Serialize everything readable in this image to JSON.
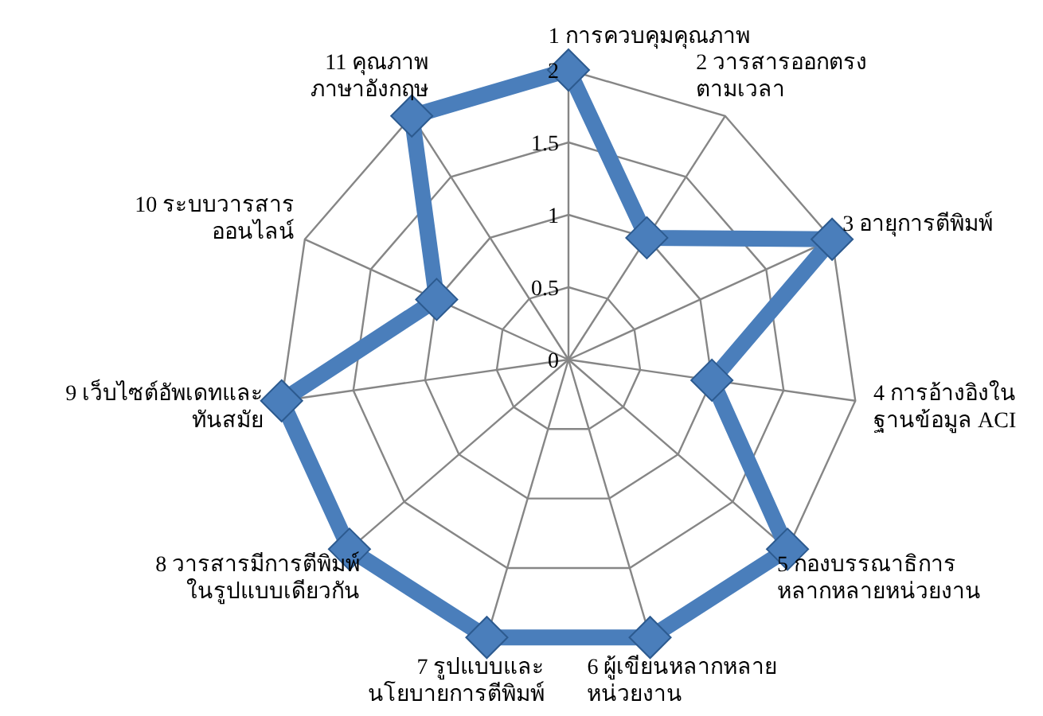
{
  "chart_data": {
    "type": "radar",
    "categories": [
      "1 การควบคุมคุณภาพ",
      "2 วารสารออกตรง ตามเวลา",
      "3 อายุการตีพิมพ์",
      "4 การอ้างอิงใน ฐานข้อมูล ACI",
      "5 กองบรรณาธิการ หลากหลายหน่วยงาน",
      "6 ผู้เขียนหลากหลาย หน่วยงาน",
      "7 รูปแบบและ นโยบายการตีพิมพ์",
      "8 วารสารมีการตีพิมพ์ ในรูปแบบเดียวกัน",
      "9 เว็บไซต์อัพเดทและ ทันสมัย",
      "10 ระบบวารสาร ออนไลน์",
      "11 คุณภาพ ภาษาอังกฤษ"
    ],
    "series": [
      {
        "color": "#4a7ebb",
        "values": [
          2,
          1,
          2,
          1,
          2,
          2,
          2,
          2,
          2,
          1,
          2
        ]
      }
    ],
    "ylim": [
      0,
      2
    ],
    "yticks": [
      0,
      0.5,
      1,
      1.5,
      2
    ],
    "grid": true,
    "marker": "diamond"
  }
}
